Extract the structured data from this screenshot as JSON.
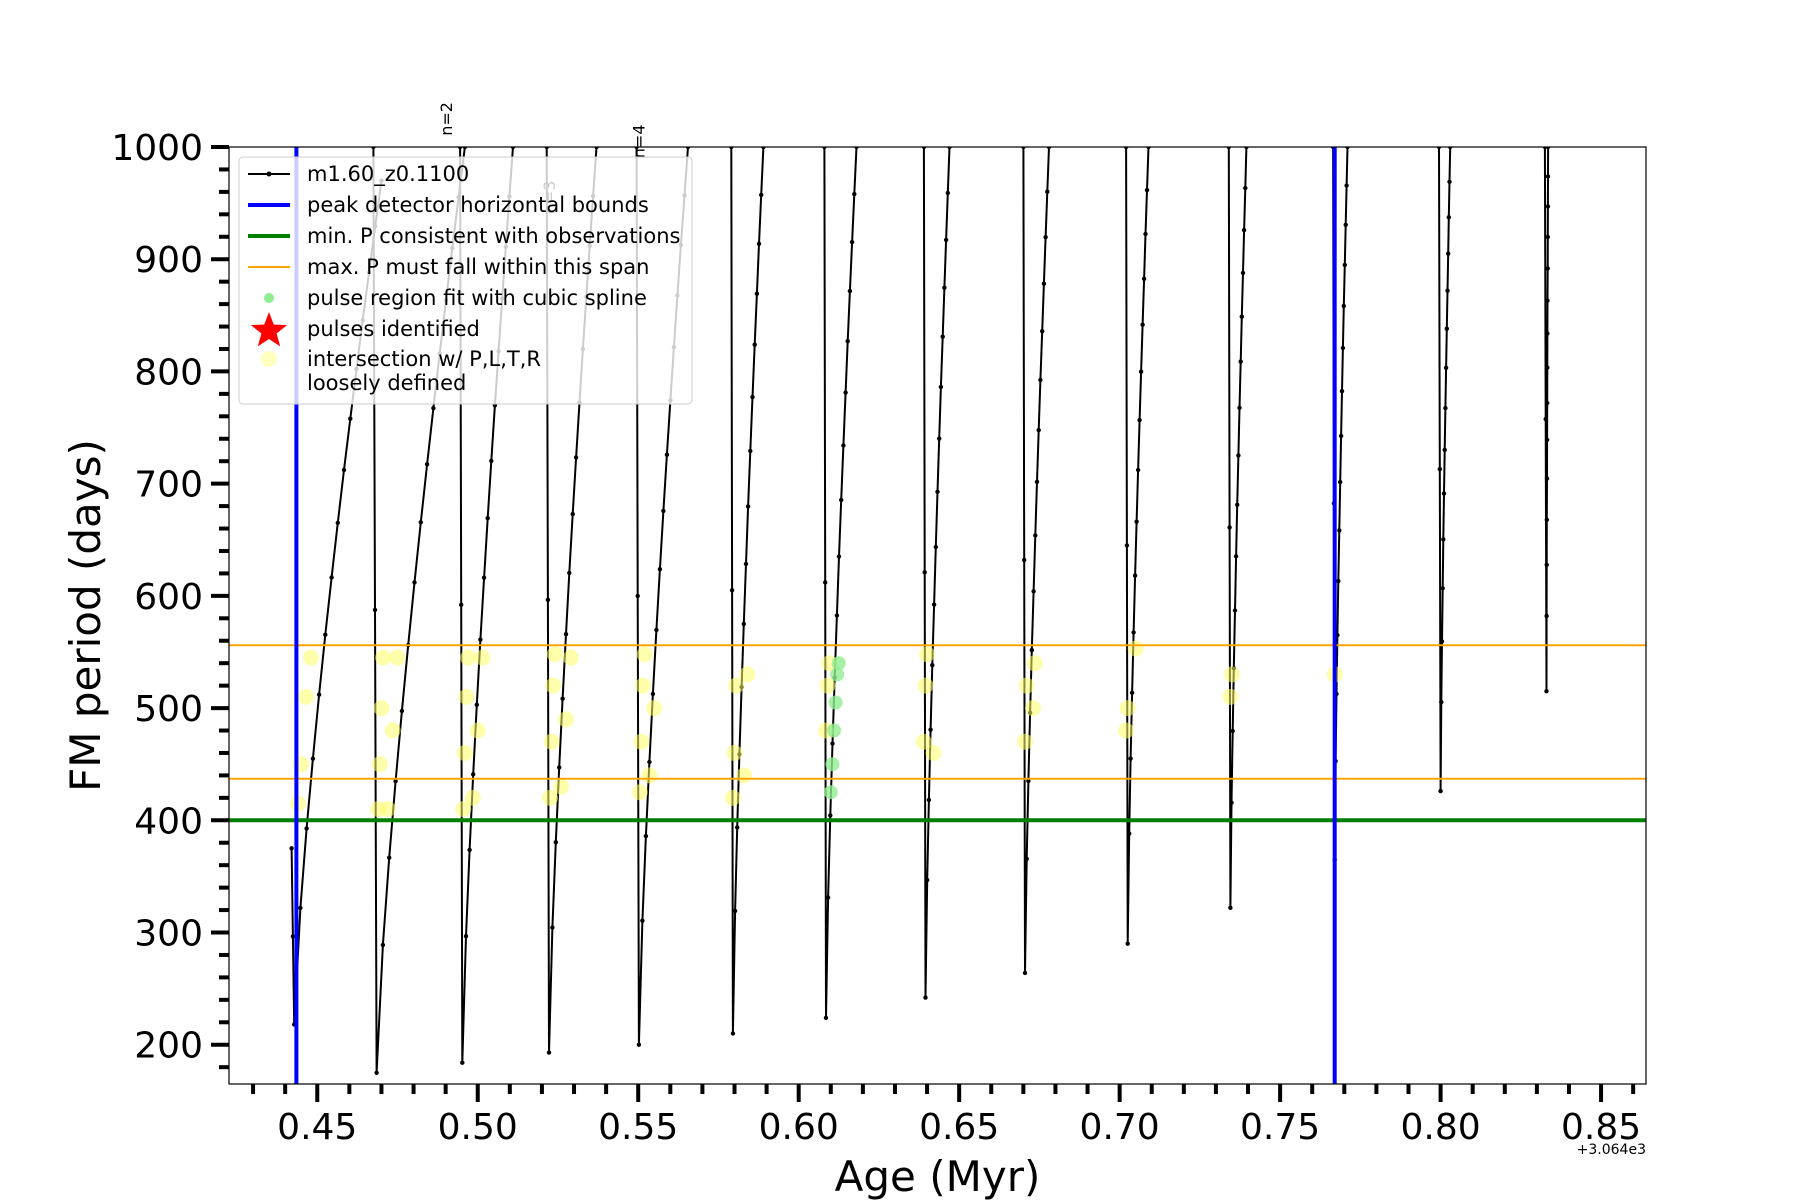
{
  "chart_data": {
    "type": "line",
    "xlabel": "Age (Myr)",
    "ylabel": "FM period (days)",
    "x_offset_text": "+3.064e3",
    "xlim": [
      0.4225,
      0.864
    ],
    "ylim": [
      165,
      1000
    ],
    "x_ticks": [
      0.45,
      0.5,
      0.55,
      0.6,
      0.65,
      0.7,
      0.75,
      0.8,
      0.85
    ],
    "x_tick_labels": [
      "0.45",
      "0.50",
      "0.55",
      "0.60",
      "0.65",
      "0.70",
      "0.75",
      "0.80",
      "0.85"
    ],
    "y_ticks": [
      200,
      300,
      400,
      500,
      600,
      700,
      800,
      900,
      1000
    ],
    "y_tick_labels": [
      "200",
      "300",
      "400",
      "500",
      "600",
      "700",
      "800",
      "900",
      "1000"
    ],
    "grid": false,
    "legend_position": "upper-left",
    "legend": [
      {
        "label": "m1.60_z0.1100",
        "kind": "line-marker",
        "color": "#000000"
      },
      {
        "label": "peak detector horizontal bounds",
        "kind": "line",
        "color": "#0000ff"
      },
      {
        "label": "min. P consistent with observations",
        "kind": "line",
        "color": "#008000"
      },
      {
        "label": "max. P must fall within this span",
        "kind": "line",
        "color": "#ffa500"
      },
      {
        "label": "pulse region fit with cubic spline",
        "kind": "dot",
        "color": "#90ee90"
      },
      {
        "label": "pulses identified",
        "kind": "star",
        "color": "#ff0000"
      },
      {
        "label": "intersection w/ P,L,T,R",
        "label2": "loosely defined",
        "kind": "dot",
        "color": "#ffffc0"
      }
    ],
    "vertical_lines": [
      {
        "x": 0.4435,
        "color": "#0000ff"
      },
      {
        "x": 0.767,
        "color": "#0000ff"
      }
    ],
    "horizontal_lines": [
      {
        "y": 400,
        "color": "#008000",
        "width": "thick"
      },
      {
        "y": 437,
        "color": "#ffa500",
        "width": "thin"
      },
      {
        "y": 556,
        "color": "#ffa500",
        "width": "thin"
      }
    ],
    "series_name": "m1.60_z0.1100",
    "pulses": [
      {
        "x_start": 0.442,
        "x_min": 0.4428,
        "y_min": 218,
        "x_top": 0.47,
        "y_top": 970,
        "pre_y": 375
      },
      {
        "x_start": 0.4675,
        "x_min": 0.4685,
        "y_min": 175,
        "x_top": 0.496,
        "y_top": 1000,
        "pre_y": 1000
      },
      {
        "x_start": 0.4945,
        "x_min": 0.4952,
        "y_min": 184,
        "x_top": 0.511,
        "y_top": 1000,
        "pre_y": 1000
      },
      {
        "x_start": 0.5215,
        "x_min": 0.5222,
        "y_min": 193,
        "x_top": 0.537,
        "y_top": 1000,
        "pre_y": 1000
      },
      {
        "x_start": 0.5495,
        "x_min": 0.5502,
        "y_min": 200,
        "x_top": 0.5655,
        "y_top": 1000,
        "pre_y": 1000
      },
      {
        "x_start": 0.579,
        "x_min": 0.5795,
        "y_min": 210,
        "x_top": 0.589,
        "y_top": 1000,
        "pre_y": 1000
      },
      {
        "x_start": 0.608,
        "x_min": 0.6085,
        "y_min": 224,
        "x_top": 0.618,
        "y_top": 1000,
        "pre_y": 1000
      },
      {
        "x_start": 0.639,
        "x_min": 0.6395,
        "y_min": 242,
        "x_top": 0.647,
        "y_top": 1000,
        "pre_y": 1000
      },
      {
        "x_start": 0.67,
        "x_min": 0.6705,
        "y_min": 264,
        "x_top": 0.678,
        "y_top": 1000,
        "pre_y": 1000
      },
      {
        "x_start": 0.702,
        "x_min": 0.7025,
        "y_min": 290,
        "x_top": 0.709,
        "y_top": 1000,
        "pre_y": 1000
      },
      {
        "x_start": 0.734,
        "x_min": 0.7345,
        "y_min": 322,
        "x_top": 0.7395,
        "y_top": 1000,
        "pre_y": 1000
      },
      {
        "x_start": 0.7665,
        "x_min": 0.767,
        "y_min": 365,
        "x_top": 0.771,
        "y_top": 1000,
        "pre_y": 1000
      },
      {
        "x_start": 0.7995,
        "x_min": 0.8,
        "y_min": 426,
        "x_top": 0.803,
        "y_top": 1000,
        "pre_y": 1000
      },
      {
        "x_start": 0.8325,
        "x_min": 0.833,
        "y_min": 515,
        "x_top": 0.8335,
        "y_top": 1000,
        "pre_y": 1000
      }
    ],
    "intersection_points": [
      {
        "x": 0.444,
        "y": 415
      },
      {
        "x": 0.445,
        "y": 450
      },
      {
        "x": 0.4465,
        "y": 510
      },
      {
        "x": 0.448,
        "y": 545
      },
      {
        "x": 0.469,
        "y": 410
      },
      {
        "x": 0.4695,
        "y": 450
      },
      {
        "x": 0.47,
        "y": 500
      },
      {
        "x": 0.4705,
        "y": 545
      },
      {
        "x": 0.472,
        "y": 410
      },
      {
        "x": 0.4735,
        "y": 480
      },
      {
        "x": 0.475,
        "y": 545
      },
      {
        "x": 0.4955,
        "y": 410
      },
      {
        "x": 0.496,
        "y": 460
      },
      {
        "x": 0.4965,
        "y": 510
      },
      {
        "x": 0.497,
        "y": 545
      },
      {
        "x": 0.4985,
        "y": 420
      },
      {
        "x": 0.5,
        "y": 480
      },
      {
        "x": 0.5015,
        "y": 545
      },
      {
        "x": 0.5225,
        "y": 420
      },
      {
        "x": 0.523,
        "y": 470
      },
      {
        "x": 0.5235,
        "y": 520
      },
      {
        "x": 0.524,
        "y": 548
      },
      {
        "x": 0.526,
        "y": 430
      },
      {
        "x": 0.5275,
        "y": 490
      },
      {
        "x": 0.529,
        "y": 545
      },
      {
        "x": 0.5505,
        "y": 425
      },
      {
        "x": 0.551,
        "y": 470
      },
      {
        "x": 0.5515,
        "y": 520
      },
      {
        "x": 0.552,
        "y": 548
      },
      {
        "x": 0.5535,
        "y": 440
      },
      {
        "x": 0.555,
        "y": 500
      },
      {
        "x": 0.5795,
        "y": 420
      },
      {
        "x": 0.58,
        "y": 460
      },
      {
        "x": 0.5805,
        "y": 520
      },
      {
        "x": 0.583,
        "y": 440
      },
      {
        "x": 0.584,
        "y": 530
      },
      {
        "x": 0.6085,
        "y": 480
      },
      {
        "x": 0.609,
        "y": 520
      },
      {
        "x": 0.6095,
        "y": 540
      },
      {
        "x": 0.639,
        "y": 470
      },
      {
        "x": 0.6395,
        "y": 520
      },
      {
        "x": 0.64,
        "y": 548
      },
      {
        "x": 0.642,
        "y": 460
      },
      {
        "x": 0.6705,
        "y": 470
      },
      {
        "x": 0.671,
        "y": 520
      },
      {
        "x": 0.673,
        "y": 500
      },
      {
        "x": 0.6735,
        "y": 540
      },
      {
        "x": 0.702,
        "y": 480
      },
      {
        "x": 0.7025,
        "y": 500
      },
      {
        "x": 0.705,
        "y": 553
      },
      {
        "x": 0.7345,
        "y": 510
      },
      {
        "x": 0.735,
        "y": 530
      },
      {
        "x": 0.767,
        "y": 530
      }
    ],
    "spline_points": [
      {
        "x": 0.61,
        "y": 425
      },
      {
        "x": 0.6105,
        "y": 450
      },
      {
        "x": 0.611,
        "y": 480
      },
      {
        "x": 0.6115,
        "y": 505
      },
      {
        "x": 0.612,
        "y": 530
      },
      {
        "x": 0.6125,
        "y": 540
      }
    ],
    "annotations": [
      {
        "text": "n=2",
        "x": 0.492,
        "y": 1010,
        "rotation": -90,
        "color": "#000000"
      },
      {
        "text": "n=3",
        "x": 0.524,
        "y": 940,
        "rotation": -90,
        "color": "#cccccc"
      },
      {
        "text": "n=4",
        "x": 0.552,
        "y": 990,
        "rotation": -90,
        "color": "#cccccc"
      }
    ]
  }
}
